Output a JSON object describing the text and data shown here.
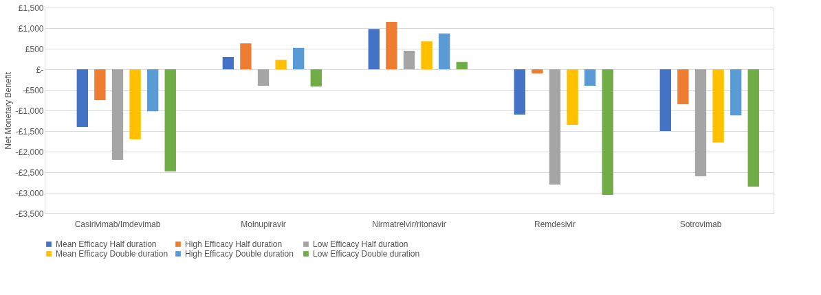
{
  "chart_data": {
    "type": "bar",
    "ylabel": "Net Monetary Benefit",
    "categories": [
      "Casirivimab/Imdevimab",
      "Molnupiravir",
      "Nirmatrelvir/ritonavir",
      "Remdesivir",
      "Sotrovimab"
    ],
    "series": [
      {
        "name": "Mean Efficacy Half duration",
        "color": "#4472c4",
        "values": [
          -1400,
          300,
          980,
          -1100,
          -1500
        ]
      },
      {
        "name": "High Efficacy  Half duration",
        "color": "#ed7d31",
        "values": [
          -750,
          630,
          1150,
          -100,
          -850
        ]
      },
      {
        "name": "Low Efficacy  Half duration",
        "color": "#a5a5a5",
        "values": [
          -2200,
          -400,
          450,
          -2800,
          -2600
        ]
      },
      {
        "name": "Mean Efficacy Double duration",
        "color": "#ffc000",
        "values": [
          -1700,
          230,
          680,
          -1350,
          -1780
        ]
      },
      {
        "name": "High Efficacy  Double duration",
        "color": "#5b9bd5",
        "values": [
          -1020,
          520,
          870,
          -400,
          -1120
        ]
      },
      {
        "name": "Low Efficacy  Double duration",
        "color": "#70ad47",
        "values": [
          -2480,
          -420,
          180,
          -3050,
          -2850
        ]
      }
    ],
    "ylim": [
      -3500,
      1500
    ],
    "yticks": [
      {
        "value": 1500,
        "label": "£1,500"
      },
      {
        "value": 1000,
        "label": "£1,000"
      },
      {
        "value": 500,
        "label": "£500"
      },
      {
        "value": 0,
        "label": "£-"
      },
      {
        "value": -500,
        "label": "-£500"
      },
      {
        "value": -1000,
        "label": "-£1,000"
      },
      {
        "value": -1500,
        "label": "-£1,500"
      },
      {
        "value": -2000,
        "label": "-£2,000"
      },
      {
        "value": -2500,
        "label": "-£2,500"
      },
      {
        "value": -3000,
        "label": "-£3,000"
      },
      {
        "value": -3500,
        "label": "-£3,500"
      }
    ],
    "grid": "y",
    "legend": "bottom"
  }
}
